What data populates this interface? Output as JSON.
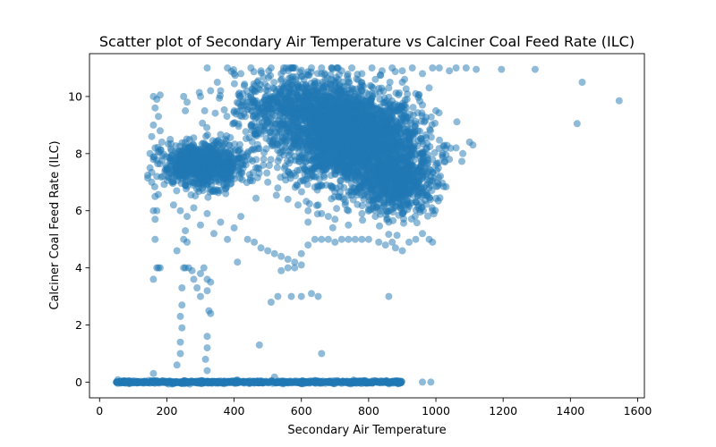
{
  "chart_data": {
    "type": "scatter",
    "title": "Scatter plot of Secondary Air Temperature vs Calciner Coal Feed Rate (ILC)",
    "xlabel": "Secondary Air Temperature",
    "ylabel": "Calciner Coal Feed Rate (ILC)",
    "xlim": [
      -30,
      1620
    ],
    "ylim": [
      -0.55,
      11.5
    ],
    "xticks": [
      0,
      200,
      400,
      600,
      800,
      1000,
      1200,
      1400,
      1600
    ],
    "yticks": [
      0,
      2,
      4,
      6,
      8,
      10
    ],
    "grid": false,
    "legend": "none",
    "marker_color": "#1f77b4",
    "marker_alpha": 0.5,
    "series": [
      {
        "points": [
          [
            50,
            0.0
          ],
          [
            80,
            0.0
          ],
          [
            110,
            0.02
          ],
          [
            140,
            0.0
          ],
          [
            170,
            0.05
          ],
          [
            200,
            0.0
          ],
          [
            230,
            0.01
          ],
          [
            260,
            0.0
          ],
          [
            290,
            0.03
          ],
          [
            320,
            0.0
          ],
          [
            350,
            0.02
          ],
          [
            380,
            0.0
          ],
          [
            410,
            0.04
          ],
          [
            440,
            0.0
          ],
          [
            470,
            0.01
          ],
          [
            500,
            0.0
          ],
          [
            530,
            0.02
          ],
          [
            560,
            0.0
          ],
          [
            590,
            0.03
          ],
          [
            620,
            0.0
          ],
          [
            650,
            0.01
          ],
          [
            680,
            0.0
          ],
          [
            710,
            0.02
          ],
          [
            740,
            0.0
          ],
          [
            770,
            0.01
          ],
          [
            800,
            0.0
          ],
          [
            830,
            0.02
          ],
          [
            860,
            0.0
          ],
          [
            890,
            0.01
          ],
          [
            960,
            0.0
          ],
          [
            985,
            0.0
          ],
          [
            160,
            0.3
          ],
          [
            520,
            0.18
          ],
          [
            320,
            0.4
          ],
          [
            160,
            10.0
          ],
          [
            170,
            9.9
          ],
          [
            180,
            10.05
          ],
          [
            165,
            9.6
          ],
          [
            175,
            9.3
          ],
          [
            160,
            9.0
          ],
          [
            155,
            8.6
          ],
          [
            165,
            8.2
          ],
          [
            150,
            8.0
          ],
          [
            160,
            7.8
          ],
          [
            155,
            7.0
          ],
          [
            165,
            6.5
          ],
          [
            160,
            6.0
          ],
          [
            170,
            6.0
          ],
          [
            165,
            5.7
          ],
          [
            165,
            5.0
          ],
          [
            170,
            4.0
          ],
          [
            180,
            4.0
          ],
          [
            160,
            3.6
          ],
          [
            175,
            4.0
          ],
          [
            150,
            7.5
          ],
          [
            170,
            7.2
          ],
          [
            180,
            8.8
          ],
          [
            185,
            8.4
          ],
          [
            230,
            0.6
          ],
          [
            240,
            1.0
          ],
          [
            240,
            1.4
          ],
          [
            245,
            1.9
          ],
          [
            240,
            2.3
          ],
          [
            245,
            2.7
          ],
          [
            245,
            3.3
          ],
          [
            230,
            4.6
          ],
          [
            250,
            4.0
          ],
          [
            255,
            4.0
          ],
          [
            265,
            4.0
          ],
          [
            275,
            3.9
          ],
          [
            280,
            3.6
          ],
          [
            300,
            3.8
          ],
          [
            310,
            4.0
          ],
          [
            320,
            3.6
          ],
          [
            320,
            3.2
          ],
          [
            300,
            3.0
          ],
          [
            330,
            2.4
          ],
          [
            325,
            2.5
          ],
          [
            320,
            1.6
          ],
          [
            320,
            1.2
          ],
          [
            315,
            0.8
          ],
          [
            330,
            3.5
          ],
          [
            290,
            3.3
          ],
          [
            250,
            5.0
          ],
          [
            255,
            5.3
          ],
          [
            260,
            4.9
          ],
          [
            250,
            10.0
          ],
          [
            260,
            9.8
          ],
          [
            255,
            9.5
          ],
          [
            300,
            10.0
          ],
          [
            330,
            10.2
          ],
          [
            350,
            10.5
          ],
          [
            360,
            10.2
          ],
          [
            320,
            11.0
          ],
          [
            380,
            11.0
          ],
          [
            400,
            10.8
          ],
          [
            210,
            8.5
          ],
          [
            230,
            8.0
          ],
          [
            250,
            7.8
          ],
          [
            270,
            8.2
          ],
          [
            290,
            7.6
          ],
          [
            310,
            8.0
          ],
          [
            330,
            7.4
          ],
          [
            350,
            7.8
          ],
          [
            370,
            7.1
          ],
          [
            390,
            7.5
          ],
          [
            200,
            7.4
          ],
          [
            215,
            7.0
          ],
          [
            235,
            7.2
          ],
          [
            255,
            6.9
          ],
          [
            275,
            7.3
          ],
          [
            295,
            6.8
          ],
          [
            315,
            7.2
          ],
          [
            335,
            6.7
          ],
          [
            355,
            7.0
          ],
          [
            375,
            6.6
          ],
          [
            220,
            6.2
          ],
          [
            240,
            6.0
          ],
          [
            260,
            5.8
          ],
          [
            280,
            6.1
          ],
          [
            300,
            5.5
          ],
          [
            320,
            5.9
          ],
          [
            340,
            5.2
          ],
          [
            360,
            5.6
          ],
          [
            380,
            5.0
          ],
          [
            400,
            5.4
          ],
          [
            420,
            5.8
          ],
          [
            440,
            5.0
          ],
          [
            460,
            4.9
          ],
          [
            480,
            4.7
          ],
          [
            500,
            4.6
          ],
          [
            520,
            4.5
          ],
          [
            540,
            4.4
          ],
          [
            560,
            4.3
          ],
          [
            580,
            4.2
          ],
          [
            600,
            4.1
          ],
          [
            410,
            4.2
          ],
          [
            475,
            1.3
          ],
          [
            510,
            2.8
          ],
          [
            530,
            3.0
          ],
          [
            570,
            3.0
          ],
          [
            600,
            3.0
          ],
          [
            630,
            3.1
          ],
          [
            650,
            3.0
          ],
          [
            660,
            1.0
          ],
          [
            860,
            3.0
          ],
          [
            540,
            3.9
          ],
          [
            560,
            4.0
          ],
          [
            580,
            4.0
          ],
          [
            600,
            4.5
          ],
          [
            620,
            4.8
          ],
          [
            640,
            5.0
          ],
          [
            660,
            5.0
          ],
          [
            680,
            5.0
          ],
          [
            700,
            4.9
          ],
          [
            720,
            5.0
          ],
          [
            740,
            5.0
          ],
          [
            760,
            5.0
          ],
          [
            780,
            5.0
          ],
          [
            800,
            5.0
          ],
          [
            830,
            4.9
          ],
          [
            850,
            4.8
          ],
          [
            870,
            4.9
          ],
          [
            880,
            4.7
          ],
          [
            900,
            4.6
          ],
          [
            920,
            4.9
          ],
          [
            940,
            5.0
          ],
          [
            960,
            5.2
          ],
          [
            980,
            5.0
          ],
          [
            990,
            4.9
          ],
          [
            420,
            10.8
          ],
          [
            450,
            11.0
          ],
          [
            480,
            10.9
          ],
          [
            510,
            11.0
          ],
          [
            540,
            10.8
          ],
          [
            570,
            11.0
          ],
          [
            600,
            10.7
          ],
          [
            630,
            11.0
          ],
          [
            660,
            10.8
          ],
          [
            690,
            11.0
          ],
          [
            720,
            10.9
          ],
          [
            750,
            11.0
          ],
          [
            780,
            10.8
          ],
          [
            810,
            11.0
          ],
          [
            840,
            10.9
          ],
          [
            870,
            11.0
          ],
          [
            900,
            10.9
          ],
          [
            930,
            11.0
          ],
          [
            960,
            10.8
          ],
          [
            990,
            11.0
          ],
          [
            1010,
            11.0
          ],
          [
            1040,
            10.9
          ],
          [
            1060,
            11.0
          ],
          [
            1090,
            11.0
          ],
          [
            1120,
            10.95
          ],
          [
            1195,
            10.95
          ],
          [
            1295,
            10.95
          ],
          [
            1435,
            10.5
          ],
          [
            1545,
            9.85
          ],
          [
            1420,
            9.05
          ],
          [
            420,
            9.5
          ],
          [
            450,
            9.0
          ],
          [
            480,
            9.6
          ],
          [
            510,
            8.8
          ],
          [
            540,
            9.4
          ],
          [
            570,
            8.6
          ],
          [
            600,
            9.2
          ],
          [
            630,
            8.4
          ],
          [
            660,
            9.0
          ],
          [
            690,
            8.2
          ],
          [
            720,
            8.8
          ],
          [
            750,
            8.0
          ],
          [
            780,
            8.6
          ],
          [
            810,
            7.8
          ],
          [
            840,
            8.4
          ],
          [
            870,
            7.6
          ],
          [
            900,
            8.2
          ],
          [
            930,
            7.4
          ],
          [
            960,
            8.0
          ],
          [
            990,
            7.8
          ],
          [
            440,
            8.0
          ],
          [
            470,
            7.5
          ],
          [
            500,
            7.0
          ],
          [
            530,
            6.8
          ],
          [
            560,
            6.4
          ],
          [
            590,
            6.2
          ],
          [
            620,
            6.0
          ],
          [
            650,
            6.2
          ],
          [
            680,
            5.8
          ],
          [
            710,
            6.5
          ],
          [
            740,
            6.0
          ],
          [
            770,
            6.8
          ],
          [
            800,
            6.2
          ],
          [
            830,
            7.0
          ],
          [
            860,
            6.4
          ],
          [
            890,
            7.2
          ],
          [
            920,
            6.6
          ],
          [
            950,
            7.4
          ],
          [
            980,
            6.8
          ],
          [
            1000,
            7.6
          ],
          [
            1020,
            8.0
          ],
          [
            1040,
            7.8
          ],
          [
            1060,
            8.2
          ],
          [
            1080,
            8.0
          ],
          [
            1100,
            8.4
          ],
          [
            1110,
            8.3
          ],
          [
            1000,
            9.5
          ],
          [
            980,
            10.3
          ],
          [
            960,
            9.7
          ],
          [
            940,
            10.1
          ],
          [
            460,
            9.8
          ],
          [
            500,
            10.2
          ],
          [
            540,
            9.9
          ],
          [
            580,
            10.3
          ],
          [
            620,
            10.0
          ],
          [
            660,
            10.4
          ],
          [
            700,
            10.1
          ],
          [
            740,
            10.5
          ],
          [
            780,
            10.2
          ],
          [
            820,
            10.6
          ],
          [
            860,
            10.3
          ],
          [
            900,
            10.5
          ],
          [
            470,
            8.7
          ],
          [
            520,
            8.3
          ],
          [
            580,
            7.9
          ],
          [
            640,
            7.6
          ],
          [
            700,
            7.3
          ],
          [
            760,
            7.1
          ],
          [
            820,
            6.9
          ],
          [
            880,
            6.6
          ],
          [
            940,
            6.3
          ],
          [
            990,
            6.0
          ],
          [
            900,
            5.9
          ],
          [
            860,
            5.6
          ],
          [
            820,
            5.8
          ],
          [
            780,
            5.9
          ],
          [
            740,
            5.5
          ],
          [
            700,
            5.7
          ],
          [
            660,
            5.9
          ],
          [
            620,
            5.6
          ]
        ]
      }
    ],
    "dense_regions": [
      {
        "x_center": 750,
        "y_center": 8.5,
        "x_spread": 180,
        "y_spread": 1.4,
        "n": 2200
      },
      {
        "x_center": 620,
        "y_center": 9.6,
        "x_spread": 200,
        "y_spread": 1.1,
        "n": 900
      },
      {
        "x_center": 310,
        "y_center": 7.6,
        "x_spread": 110,
        "y_spread": 0.7,
        "n": 800
      },
      {
        "x_center": 880,
        "y_center": 7.0,
        "x_spread": 110,
        "y_spread": 1.0,
        "n": 700
      },
      {
        "x_center": 470,
        "y_center": 0.0,
        "x_spread": 250,
        "y_spread": 0.04,
        "n": 900
      }
    ]
  }
}
